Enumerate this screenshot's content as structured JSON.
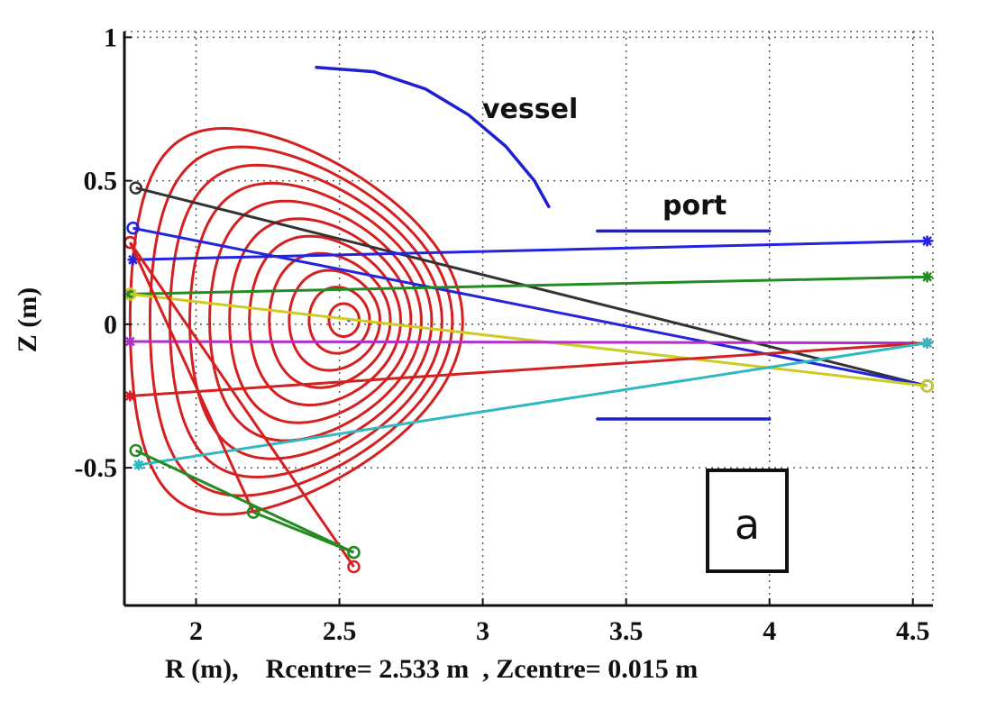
{
  "chart_data": {
    "type": "line",
    "xlabel": "R (m),    Rcentre= 2.533 m  , Zcentre= 0.015 m",
    "ylabel": "Z (m)",
    "xlim": [
      1.75,
      4.57
    ],
    "ylim": [
      -0.98,
      1.02
    ],
    "xticks": [
      {
        "value": 2,
        "label": "2"
      },
      {
        "value": 2.5,
        "label": "2.5"
      },
      {
        "value": 3,
        "label": "3"
      },
      {
        "value": 3.5,
        "label": "3.5"
      },
      {
        "value": 4,
        "label": "4"
      },
      {
        "value": 4.5,
        "label": "4.5"
      }
    ],
    "yticks": [
      {
        "value": 1,
        "label": "1"
      },
      {
        "value": 0.5,
        "label": "0.5"
      },
      {
        "value": 0,
        "label": "0"
      },
      {
        "value": -0.5,
        "label": "-0.5"
      }
    ],
    "grid": true,
    "annotations": [
      {
        "text": "vessel",
        "x": 3.2,
        "y": 0.73
      },
      {
        "text": "port",
        "x": 3.82,
        "y": 0.38
      }
    ],
    "panel_label": "a",
    "flux_surfaces": {
      "color": "#d42020",
      "centre": [
        2.533,
        0.015
      ],
      "count": 11,
      "outer_extent": {
        "r_min": 1.77,
        "r_max": 2.93,
        "z_min": -0.64,
        "z_max": 0.62
      }
    },
    "structures": [
      {
        "name": "vessel",
        "color": "#1f1fd0",
        "x": [
          2.42,
          2.62,
          2.8,
          2.95,
          3.08,
          3.18,
          3.23
        ],
        "y": [
          0.895,
          0.88,
          0.82,
          0.73,
          0.62,
          0.5,
          0.41
        ]
      },
      {
        "name": "port-upper",
        "color": "#1f1fd0",
        "x": [
          3.4,
          4.0
        ],
        "y": [
          0.325,
          0.325
        ]
      },
      {
        "name": "port-lower",
        "color": "#1f1fd0",
        "x": [
          3.4,
          4.0
        ],
        "y": [
          -0.33,
          -0.33
        ]
      }
    ],
    "series": [
      {
        "color": "#333333",
        "marker": "o",
        "x": [
          1.79,
          4.55
        ],
        "y": [
          0.475,
          -0.215
        ]
      },
      {
        "color": "#2323e0",
        "marker": "o",
        "x": [
          1.78,
          4.55
        ],
        "y": [
          0.335,
          -0.215
        ]
      },
      {
        "color": "#2323e0",
        "marker": "*",
        "x": [
          1.78,
          4.55
        ],
        "y": [
          0.225,
          0.29
        ]
      },
      {
        "color": "#228b22",
        "marker": "*",
        "x": [
          1.77,
          4.55
        ],
        "y": [
          0.105,
          0.165
        ]
      },
      {
        "color": "#cccc22",
        "marker": "o",
        "x": [
          1.77,
          4.55
        ],
        "y": [
          0.105,
          -0.215
        ]
      },
      {
        "color": "#b030c8",
        "marker": "*",
        "x": [
          1.77,
          4.55
        ],
        "y": [
          -0.06,
          -0.065
        ]
      },
      {
        "color": "#d42020",
        "marker": "*",
        "x": [
          1.77,
          4.55
        ],
        "y": [
          -0.25,
          -0.065
        ]
      },
      {
        "color": "#30b8c0",
        "marker": "*",
        "x": [
          1.8,
          4.55
        ],
        "y": [
          -0.49,
          -0.065
        ]
      },
      {
        "color": "#d42020",
        "marker": "o",
        "x": [
          1.77,
          2.55
        ],
        "y": [
          0.285,
          -0.845
        ]
      },
      {
        "color": "#d42020",
        "marker": "o",
        "x": [
          1.77,
          2.2
        ],
        "y": [
          0.285,
          -0.655
        ]
      },
      {
        "color": "#228b22",
        "marker": "o",
        "x": [
          1.79,
          2.55
        ],
        "y": [
          -0.44,
          -0.795
        ]
      },
      {
        "color": "#228b22",
        "marker": "o",
        "x": [
          2.2,
          2.55
        ],
        "y": [
          -0.655,
          -0.795
        ]
      }
    ]
  }
}
